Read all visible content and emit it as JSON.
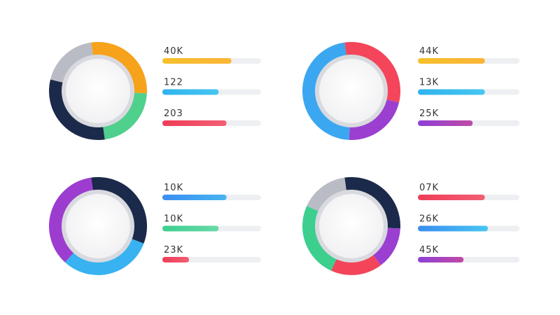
{
  "panels": [
    {
      "ring": [
        {
          "color": "#f7a21b",
          "share": 28
        },
        {
          "color": "#4fd08c",
          "share": 22
        },
        {
          "color": "#1b2a4a",
          "share": 31
        },
        {
          "color": "#b9bcc4",
          "share": 19
        }
      ],
      "items": [
        {
          "label": "40K",
          "progress": 70,
          "colors": [
            "#f6c02c",
            "#fbb536"
          ]
        },
        {
          "label": "122",
          "progress": 57,
          "colors": [
            "#2fb3ee",
            "#48c6f0"
          ]
        },
        {
          "label": "203",
          "progress": 65,
          "colors": [
            "#ee3d58",
            "#f25f73"
          ]
        }
      ]
    },
    {
      "ring": [
        {
          "color": "#f4455a",
          "share": 31
        },
        {
          "color": "#9b3fd1",
          "share": 22
        },
        {
          "color": "#3aa7f0",
          "share": 47
        }
      ],
      "items": [
        {
          "label": "44K",
          "progress": 66,
          "colors": [
            "#f6c02c",
            "#fbb536"
          ]
        },
        {
          "label": "13K",
          "progress": 66,
          "colors": [
            "#2fb3ee",
            "#48c6f0"
          ]
        },
        {
          "label": "25K",
          "progress": 54,
          "colors": [
            "#8e3fd8",
            "#c04aa5"
          ]
        }
      ]
    },
    {
      "ring": [
        {
          "color": "#1b2a4a",
          "share": 33
        },
        {
          "color": "#38b2f0",
          "share": 31
        },
        {
          "color": "#9d3dd0",
          "share": 36
        }
      ],
      "items": [
        {
          "label": "10K",
          "progress": 65,
          "colors": [
            "#3a8ef0",
            "#48b4f0"
          ]
        },
        {
          "label": "10K",
          "progress": 57,
          "colors": [
            "#3ccf8e",
            "#6ad8a8"
          ]
        },
        {
          "label": "23K",
          "progress": 27,
          "colors": [
            "#ee3d58",
            "#f25f73"
          ]
        }
      ]
    },
    {
      "ring": [
        {
          "color": "#1b2a4a",
          "share": 28
        },
        {
          "color": "#9b3fd1",
          "share": 14
        },
        {
          "color": "#f2455a",
          "share": 17
        },
        {
          "color": "#3ccf8e",
          "share": 25
        },
        {
          "color": "#b9bcc4",
          "share": 16
        }
      ],
      "items": [
        {
          "label": "07K",
          "progress": 66,
          "colors": [
            "#ee3d58",
            "#f25f73"
          ]
        },
        {
          "label": "26K",
          "progress": 69,
          "colors": [
            "#3a8ef0",
            "#48c6f0"
          ]
        },
        {
          "label": "45K",
          "progress": 45,
          "colors": [
            "#8e3fd8",
            "#c04aa5"
          ]
        }
      ]
    }
  ]
}
